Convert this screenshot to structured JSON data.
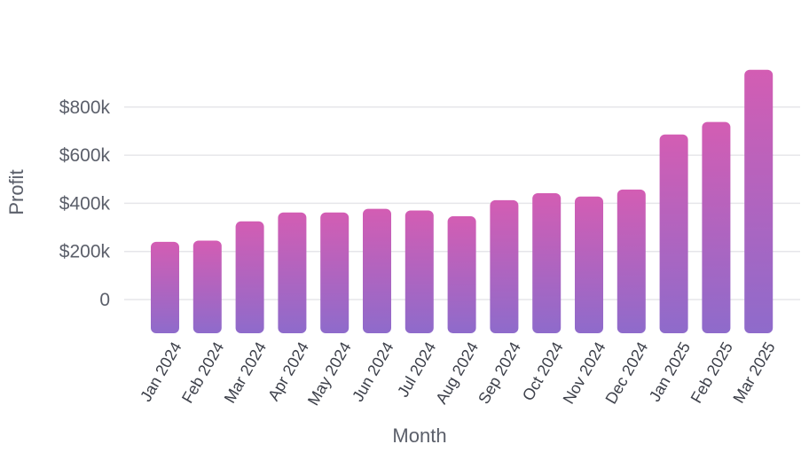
{
  "chart_data": {
    "type": "bar",
    "title": "",
    "xlabel": "Month",
    "ylabel": "Profit",
    "categories": [
      "Jan 2024",
      "Feb 2024",
      "Mar 2024",
      "Apr 2024",
      "May 2024",
      "Jun 2024",
      "Jul 2024",
      "Aug 2024",
      "Sep 2024",
      "Oct 2024",
      "Nov 2024",
      "Dec 2024",
      "Jan 2025",
      "Feb 2025",
      "Mar 2025"
    ],
    "values": [
      240000,
      245000,
      325000,
      362000,
      362000,
      377000,
      370000,
      346000,
      413000,
      442000,
      428000,
      457000,
      686000,
      738000,
      955000
    ],
    "yticks": [
      0,
      200000,
      400000,
      600000,
      800000
    ],
    "ytick_labels": [
      "0",
      "$200k",
      "$400k",
      "$600k",
      "$800k"
    ],
    "ylim": [
      0,
      1000000
    ],
    "grid": true,
    "legend": "none",
    "colors": {
      "bar_top": "#d35db3",
      "bar_bottom": "#8e6bcb",
      "grid": "#e6e6ea",
      "text": "#5b5f6a"
    }
  }
}
